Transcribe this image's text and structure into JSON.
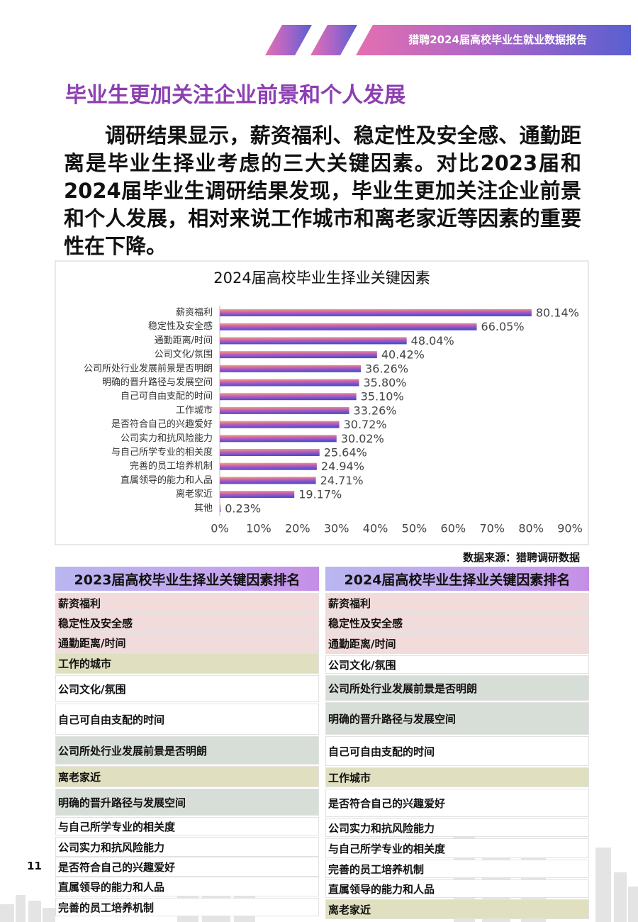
{
  "header": {
    "report_title": "猎聘2024届高校毕业生就业数据报告"
  },
  "title": "毕业生更加关注企业前景和个人发展",
  "paragraph": "调研结果显示，薪资福利、稳定性及安全感、通勤距离是毕业生择业考虑的三大关键因素。对比2023届和2024届毕业生调研结果发现，毕业生更加关注企业前景和个人发展，相对来说工作城市和离老家近等因素的重要性在下降。",
  "chart_data": {
    "type": "bar",
    "orientation": "horizontal",
    "title": "2024届高校毕业生择业关键因素",
    "categories": [
      "薪资福利",
      "稳定性及安全感",
      "通勤距离/时间",
      "公司文化/氛围",
      "公司所处行业发展前景是否明朗",
      "明确的晋升路径与发展空间",
      "自己可自由支配的时间",
      "工作城市",
      "是否符合自己的兴趣爱好",
      "公司实力和抗风险能力",
      "与自己所学专业的相关度",
      "完善的员工培养机制",
      "直属领导的能力和人品",
      "离老家近",
      "其他"
    ],
    "values": [
      80.14,
      66.05,
      48.04,
      40.42,
      36.26,
      35.8,
      35.1,
      33.26,
      30.72,
      30.02,
      25.64,
      24.94,
      24.71,
      19.17,
      0.23
    ],
    "value_labels": [
      "80.14%",
      "66.05%",
      "48.04%",
      "40.42%",
      "36.26%",
      "35.80%",
      "35.10%",
      "33.26%",
      "30.72%",
      "30.02%",
      "25.64%",
      "24.94%",
      "24.71%",
      "19.17%",
      "0.23%"
    ],
    "xlim": [
      0,
      90
    ],
    "xticks": [
      {
        "value": 0,
        "label": "0%"
      },
      {
        "value": 10,
        "label": "10%"
      },
      {
        "value": 20,
        "label": "20%"
      },
      {
        "value": 30,
        "label": "30%"
      },
      {
        "value": 40,
        "label": "40%"
      },
      {
        "value": 50,
        "label": "50%"
      },
      {
        "value": 60,
        "label": "60%"
      },
      {
        "value": 70,
        "label": "70%"
      },
      {
        "value": 80,
        "label": "80%"
      },
      {
        "value": 90,
        "label": "90%"
      }
    ],
    "grid": false
  },
  "source": "数据来源：猎聘调研数据",
  "tables": [
    {
      "title": "2023届高校毕业生择业关键因素排名",
      "rows": [
        "薪资福利",
        "稳定性及安全感",
        "通勤距离/时间",
        "工作的城市",
        "公司文化/氛围",
        "自己可自由支配的时间",
        "公司所处行业发展前景是否明朗",
        "离老家近",
        "明确的晋升路径与发展空间",
        "与自己所学专业的相关度",
        "公司实力和抗风险能力",
        "是否符合自己的兴趣爱好",
        "直属领导的能力和人品",
        "完善的员工培养机制"
      ]
    },
    {
      "title": "2024届高校毕业生择业关键因素排名",
      "rows": [
        "薪资福利",
        "稳定性及安全感",
        "通勤距离/时间",
        "公司文化/氛围",
        "公司所处行业发展前景是否明朗",
        "明确的晋升路径与发展空间",
        "自己可自由支配的时间",
        "工作城市",
        "是否符合自己的兴趣爱好",
        "公司实力和抗风险能力",
        "与自己所学专业的相关度",
        "完善的员工培养机制",
        "直属领导的能力和人品",
        "离老家近"
      ]
    }
  ],
  "page_number": "11"
}
